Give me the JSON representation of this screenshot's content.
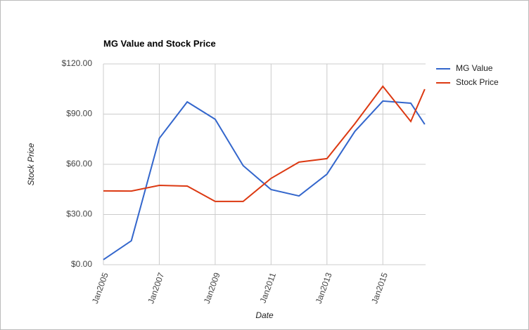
{
  "chart_data": {
    "type": "line",
    "title": "MG Value and Stock Price",
    "x_label": "Date",
    "y_label": "Stock Price",
    "x": [
      2005,
      2006,
      2007,
      2008,
      2009,
      2010,
      2011,
      2012,
      2013,
      2014,
      2015,
      2016,
      2016.5
    ],
    "series": [
      {
        "name": "MG Value",
        "color": "#3366cc",
        "values": [
          3,
          14.3,
          75.5,
          97.3,
          86.9,
          59.2,
          44.9,
          41.1,
          54.1,
          79.7,
          97.8,
          96.5,
          83.9
        ]
      },
      {
        "name": "Stock Price",
        "color": "#dc3912",
        "values": [
          44.1,
          44,
          47.4,
          47,
          37.8,
          37.8,
          51.6,
          61.3,
          63.4,
          84.3,
          106.6,
          85.6,
          104.9
        ]
      }
    ],
    "xlim": [
      2005,
      2016.53
    ],
    "xticks": [
      {
        "value": 2005,
        "label": "Jan2005"
      },
      {
        "value": 2007,
        "label": "Jan2007"
      },
      {
        "value": 2009,
        "label": "Jan2009"
      },
      {
        "value": 2011,
        "label": "Jan2011"
      },
      {
        "value": 2013,
        "label": "Jan2013"
      },
      {
        "value": 2015,
        "label": "Jan2015"
      }
    ],
    "ylim": [
      0,
      120
    ],
    "yticks": [
      {
        "value": 0,
        "label": "$0.00"
      },
      {
        "value": 30,
        "label": "$30.00"
      },
      {
        "value": 60,
        "label": "$60.00"
      },
      {
        "value": 90,
        "label": "$90.00"
      },
      {
        "value": 120,
        "label": "$120.00"
      }
    ],
    "grid": true,
    "legend": "right"
  }
}
